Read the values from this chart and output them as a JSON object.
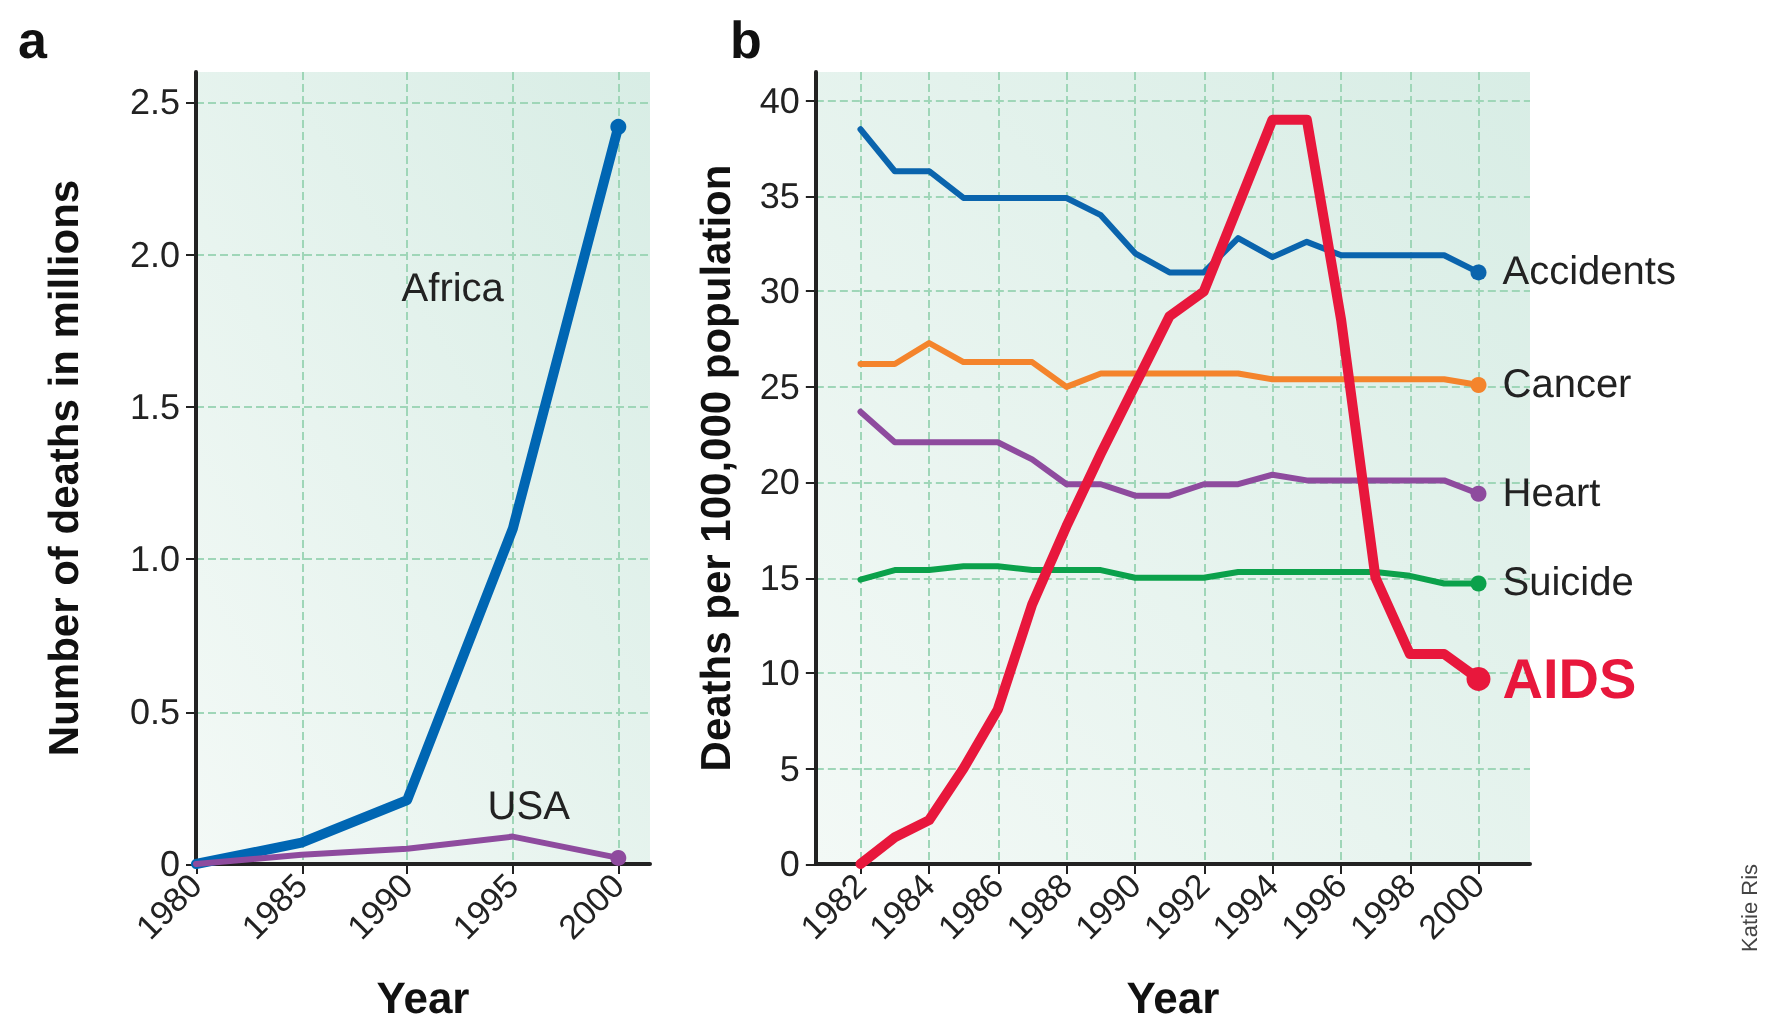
{
  "chart_data": [
    {
      "type": "line",
      "title": "a",
      "xlabel": "Year",
      "ylabel": "Number of deaths in millions",
      "x": [
        1980,
        1985,
        1990,
        1995,
        2000
      ],
      "xlim": [
        1980,
        2001.5
      ],
      "xticks": [
        1980,
        1985,
        1990,
        1995,
        2000
      ],
      "ylim": [
        0,
        2.6
      ],
      "yticks": [
        0,
        0.5,
        {
          "value": 1,
          "label": "1.0"
        },
        1.5,
        {
          "value": 2,
          "label": "2.0"
        },
        2.5
      ],
      "grid": true,
      "legend": false,
      "line_style": "solid",
      "series": [
        {
          "name": "Africa",
          "color": "#0066b3",
          "values": [
            0,
            0.07,
            0.21,
            1.1,
            2.42
          ]
        },
        {
          "name": "USA",
          "color": "#8e4b9e",
          "values": [
            0,
            0.03,
            0.05,
            0.09,
            0.02
          ]
        }
      ]
    },
    {
      "type": "line",
      "title": "b",
      "xlabel": "Year",
      "ylabel": "Deaths per 100,000 population",
      "x": [
        1982,
        1983,
        1984,
        1985,
        1986,
        1987,
        1988,
        1989,
        1990,
        1991,
        1992,
        1993,
        1994,
        1995,
        1996,
        1997,
        1998,
        1999,
        2000
      ],
      "xlim": [
        1980.7,
        2001.5
      ],
      "xticks": [
        1982,
        1984,
        1986,
        1988,
        1990,
        1992,
        1994,
        1996,
        1998,
        2000
      ],
      "ylim": [
        0,
        41.5
      ],
      "yticks": [
        0,
        5,
        10,
        15,
        20,
        25,
        30,
        35,
        40
      ],
      "grid": true,
      "legend": false,
      "line_style": "solid",
      "annotations": [
        "Katie Ris"
      ],
      "series": [
        {
          "name": "Accidents",
          "color": "#0a64ad",
          "values": [
            38.5,
            36.3,
            36.3,
            34.9,
            34.9,
            34.9,
            34.9,
            34,
            32,
            31,
            31,
            32.8,
            31.8,
            32.6,
            31.9,
            31.9,
            31.9,
            31.9,
            31
          ]
        },
        {
          "name": "Cancer",
          "color": "#f4842c",
          "values": [
            26.2,
            26.2,
            27.3,
            26.3,
            26.3,
            26.3,
            25,
            25.7,
            25.7,
            25.7,
            25.7,
            25.7,
            25.4,
            25.4,
            25.4,
            25.4,
            25.4,
            25.4,
            25.1
          ]
        },
        {
          "name": "Heart",
          "color": "#8e4b9e",
          "values": [
            23.7,
            22.1,
            22.1,
            22.1,
            22.1,
            21.2,
            19.9,
            19.9,
            19.3,
            19.3,
            19.9,
            19.9,
            20.4,
            20.1,
            20.1,
            20.1,
            20.1,
            20.1,
            19.4
          ]
        },
        {
          "name": "Suicide",
          "color": "#0ba14b",
          "values": [
            14.9,
            15.4,
            15.4,
            15.6,
            15.6,
            15.4,
            15.4,
            15.4,
            15,
            15,
            15,
            15.3,
            15.3,
            15.3,
            15.3,
            15.3,
            15.1,
            14.7,
            14.7
          ]
        },
        {
          "name": "AIDS",
          "color": "#e8173c",
          "values": [
            0,
            1.4,
            2.3,
            5,
            8.1,
            13.6,
            17.7,
            21.5,
            25.1,
            28.7,
            30,
            34.5,
            39,
            39,
            28.5,
            15,
            11,
            11,
            9.7
          ]
        }
      ]
    }
  ]
}
